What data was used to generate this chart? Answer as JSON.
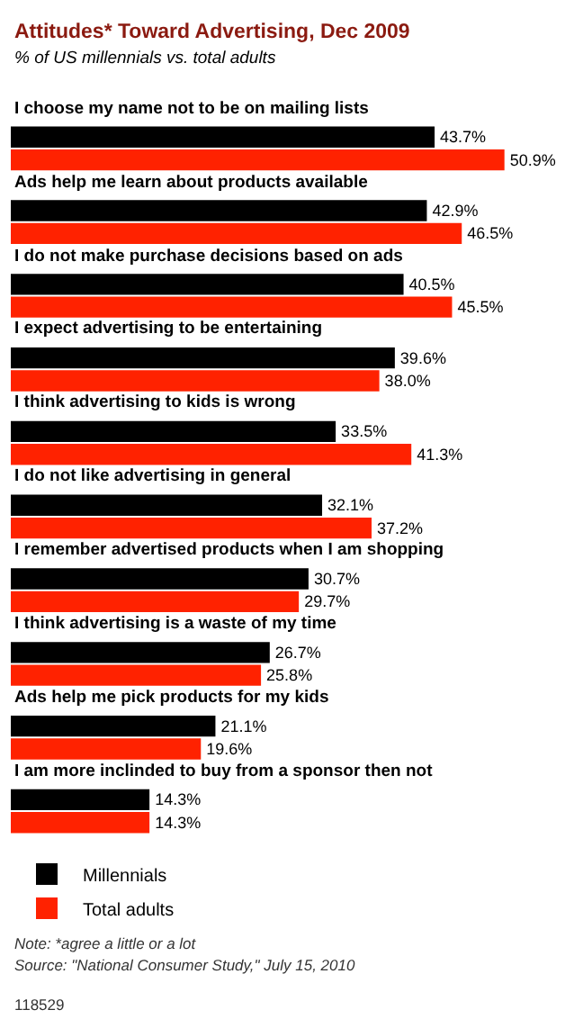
{
  "chart_data": {
    "type": "bar",
    "orientation": "horizontal",
    "title": "Attitudes* Toward Advertising, Dec 2009",
    "subtitle": "% of US millennials vs. total adults",
    "categories": [
      "I choose my name not to be on mailing lists",
      "Ads help me learn about products available",
      "I do not make purchase decisions based on ads",
      "I expect advertising to be entertaining",
      "I think advertising to kids is wrong",
      "I do not like advertising in general",
      "I remember advertised products when I am shopping",
      "I think advertising is a waste of my time",
      "Ads help me pick products for my kids",
      "I am more inclinded to buy from a sponsor then not"
    ],
    "series": [
      {
        "name": "Millennials",
        "color": "#000000",
        "values": [
          43.7,
          42.9,
          40.5,
          39.6,
          33.5,
          32.1,
          30.7,
          26.7,
          21.1,
          14.3
        ],
        "value_labels": [
          "43.7%",
          "42.9%",
          "40.5%",
          "39.6%",
          "33.5%",
          "32.1%",
          "30.7%",
          "26.7%",
          "21.1%",
          "14.3%"
        ]
      },
      {
        "name": "Total adults",
        "color": "#ff2200",
        "values": [
          50.9,
          46.5,
          45.5,
          38.0,
          41.3,
          37.2,
          29.7,
          25.8,
          19.6,
          14.3
        ],
        "value_labels": [
          "50.9%",
          "46.5%",
          "45.5%",
          "38.0%",
          "41.3%",
          "37.2%",
          "29.7%",
          "25.8%",
          "19.6%",
          "14.3%"
        ]
      }
    ],
    "legend": "bottom",
    "tick_labels": false,
    "annotations": [
      "Note: *agree a little or a lot",
      "Source: \"National Consumer Study,\" July 15, 2010",
      "118529"
    ]
  }
}
